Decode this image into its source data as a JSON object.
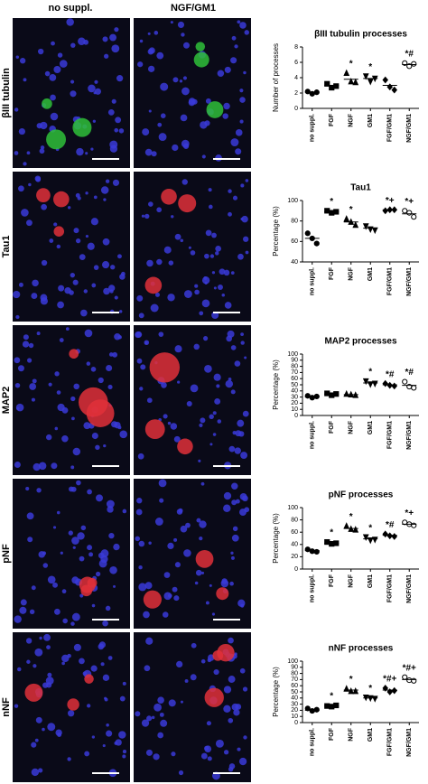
{
  "figure": {
    "columns": [
      "no suppl.",
      "NGF/GM1"
    ],
    "rows": [
      "βIII tubulin",
      "Tau1",
      "MAP2",
      "pNF",
      "nNF"
    ]
  },
  "chart_data": [
    {
      "type": "dot",
      "title": "βIII tubulin processes",
      "ylabel": "Number of processes",
      "categories": [
        "no suppl.",
        "FGF",
        "NGF",
        "GM1",
        "FGF/GM1",
        "NGF/GM1"
      ],
      "markers": [
        "circle",
        "square",
        "triangle",
        "triangle-down",
        "diamond",
        "open-circle"
      ],
      "values": [
        [
          2.2,
          1.9,
          2.1
        ],
        [
          3.2,
          2.7,
          2.9
        ],
        [
          4.6,
          3.5,
          3.4
        ],
        [
          4.2,
          3.5,
          3.9
        ],
        [
          3.7,
          2.8,
          2.4
        ],
        [
          5.9,
          5.5,
          5.8
        ]
      ],
      "means": [
        2.1,
        3.0,
        3.8,
        3.9,
        3.0,
        5.7
      ],
      "annotations": [
        null,
        null,
        "*",
        "*",
        null,
        "*#"
      ],
      "ylim": [
        0,
        8
      ],
      "yticks": [
        0,
        2,
        4,
        6,
        8
      ]
    },
    {
      "type": "dot",
      "title": "Tau1",
      "ylabel": "Percentage (%)",
      "categories": [
        "no suppl.",
        "FGF",
        "NGF",
        "GM1",
        "FGF/GM1",
        "NGF/GM1"
      ],
      "markers": [
        "circle",
        "square",
        "triangle",
        "triangle-down",
        "diamond",
        "open-circle"
      ],
      "values": [
        [
          68,
          63,
          58
        ],
        [
          90,
          88,
          89
        ],
        [
          82,
          79,
          76
        ],
        [
          75,
          72,
          71
        ],
        [
          90,
          91,
          91
        ],
        [
          90,
          88,
          84
        ]
      ],
      "means": [
        63,
        89,
        79,
        73,
        91,
        87
      ],
      "annotations": [
        null,
        "*",
        "*",
        null,
        "*+",
        "*+"
      ],
      "ylim": [
        40,
        100
      ],
      "yticks": [
        40,
        60,
        80,
        100
      ]
    },
    {
      "type": "dot",
      "title": "MAP2 processes",
      "ylabel": "Percentage (%)",
      "categories": [
        "no suppl.",
        "FGF",
        "NGF",
        "GM1",
        "FGF/GM1",
        "NGF/GM1"
      ],
      "markers": [
        "circle",
        "square",
        "triangle",
        "triangle-down",
        "diamond",
        "open-circle"
      ],
      "values": [
        [
          32,
          29,
          31
        ],
        [
          36,
          33,
          35
        ],
        [
          35,
          34,
          33
        ],
        [
          56,
          51,
          52
        ],
        [
          52,
          49,
          48
        ],
        [
          55,
          47,
          45
        ]
      ],
      "means": [
        30,
        35,
        34,
        53,
        50,
        49
      ],
      "annotations": [
        null,
        null,
        null,
        "*",
        "*#",
        "*#"
      ],
      "ylim": [
        0,
        100
      ],
      "yticks": [
        0,
        10,
        20,
        30,
        40,
        50,
        60,
        70,
        80,
        90,
        100
      ]
    },
    {
      "type": "dot",
      "title": "pNF processes",
      "ylabel": "Percentage (%)",
      "categories": [
        "no suppl.",
        "FGF",
        "NGF",
        "GM1",
        "FGF/GM1",
        "NGF/GM1"
      ],
      "markers": [
        "circle",
        "square",
        "triangle",
        "triangle-down",
        "diamond",
        "open-circle"
      ],
      "values": [
        [
          32,
          29,
          28
        ],
        [
          44,
          41,
          42
        ],
        [
          70,
          65,
          64
        ],
        [
          52,
          47,
          48
        ],
        [
          57,
          54,
          53
        ],
        [
          76,
          73,
          71
        ]
      ],
      "means": [
        30,
        42,
        66,
        49,
        55,
        73
      ],
      "annotations": [
        null,
        "*",
        "*",
        "*",
        "*#",
        "*+"
      ],
      "ylim": [
        0,
        100
      ],
      "yticks": [
        0,
        20,
        40,
        60,
        80,
        100
      ]
    },
    {
      "type": "dot",
      "title": "nNF processes",
      "ylabel": "Percentage (%)",
      "categories": [
        "no suppl.",
        "FGF",
        "NGF",
        "GM1",
        "FGF/GM1",
        "NGF/GM1"
      ],
      "markers": [
        "circle",
        "square",
        "triangle",
        "triangle-down",
        "diamond",
        "open-circle"
      ],
      "values": [
        [
          23,
          19,
          21
        ],
        [
          27,
          26,
          28
        ],
        [
          55,
          51,
          51
        ],
        [
          41,
          40,
          39
        ],
        [
          56,
          50,
          52
        ],
        [
          74,
          69,
          68
        ]
      ],
      "means": [
        20,
        27,
        53,
        40,
        53,
        70
      ],
      "annotations": [
        null,
        "*",
        "*",
        "*",
        "*#+",
        "*#+"
      ],
      "ylim": [
        0,
        100
      ],
      "yticks": [
        0,
        10,
        20,
        30,
        40,
        50,
        60,
        70,
        80,
        90,
        100
      ]
    }
  ]
}
